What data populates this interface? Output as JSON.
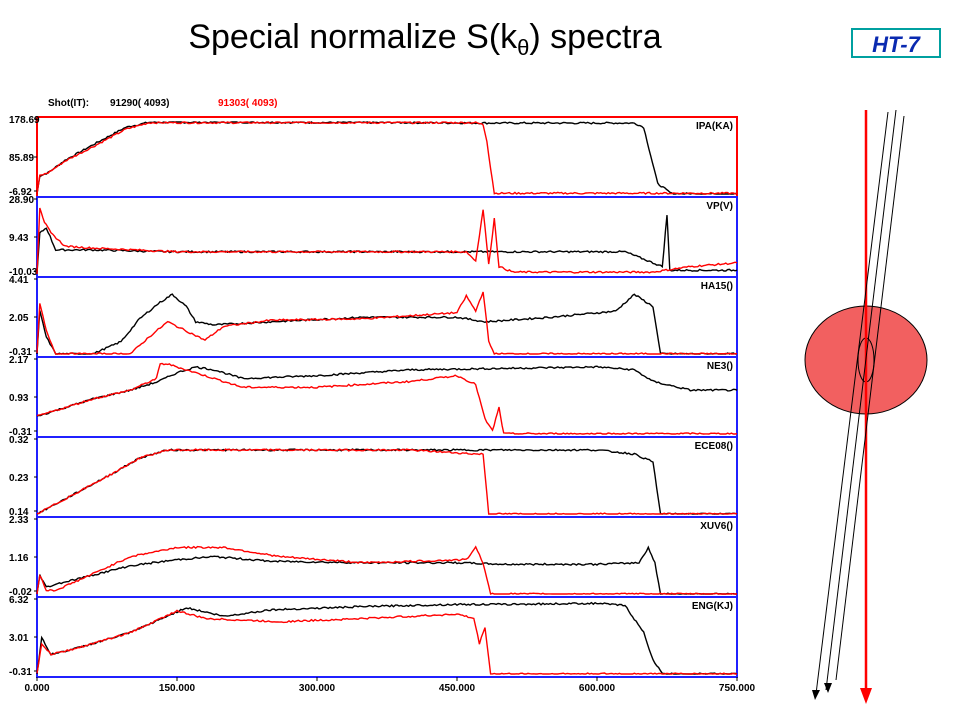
{
  "title": {
    "prefix": "Special normalize  S(k",
    "subscript": "θ",
    "suffix": ") spectra"
  },
  "badge": "HT-7",
  "header": {
    "shot_label": "Shot(IT):",
    "shot1": "91290( 4093)",
    "shot2": "91303( 4093)"
  },
  "colors": {
    "shot1": "#000000",
    "shot2": "#ff0000",
    "frame": "#2020ff",
    "first_frame": "#ff0000",
    "ellipse_fill": "#f26060"
  },
  "chart_data": {
    "type": "line",
    "xlim": [
      0,
      750
    ],
    "x_ticks": [
      "0.000",
      "150.000",
      "300.000",
      "450.000",
      "600.000",
      "750.000"
    ],
    "series": [
      {
        "name": "91290( 4093)",
        "color": "#000000"
      },
      {
        "name": "91303( 4093)",
        "color": "#ff0000"
      }
    ],
    "panels": [
      {
        "label": "IPA(KA)",
        "ticks": [
          "178.69",
          "85.89",
          "-6.92"
        ],
        "ylim": [
          -6.92,
          178.69
        ],
        "black": [
          [
            0,
            -6.9
          ],
          [
            3,
            40
          ],
          [
            12,
            48
          ],
          [
            30,
            80
          ],
          [
            60,
            120
          ],
          [
            95,
            165
          ],
          [
            120,
            178
          ],
          [
            200,
            178
          ],
          [
            400,
            177
          ],
          [
            480,
            176
          ],
          [
            640,
            176
          ],
          [
            650,
            165
          ],
          [
            665,
            20
          ],
          [
            680,
            -6
          ],
          [
            750,
            -6.9
          ]
        ],
        "red": [
          [
            0,
            -6.9
          ],
          [
            3,
            40
          ],
          [
            12,
            48
          ],
          [
            30,
            78
          ],
          [
            60,
            115
          ],
          [
            95,
            160
          ],
          [
            120,
            177
          ],
          [
            300,
            177
          ],
          [
            470,
            177
          ],
          [
            478,
            172
          ],
          [
            482,
            130
          ],
          [
            486,
            60
          ],
          [
            490,
            -5
          ],
          [
            750,
            -5
          ]
        ]
      },
      {
        "label": "VP(V)",
        "ticks": [
          "28.90",
          "9.43",
          "-10.03"
        ],
        "ylim": [
          -10.03,
          28.9
        ],
        "black": [
          [
            0,
            -10
          ],
          [
            3,
            12
          ],
          [
            10,
            15
          ],
          [
            20,
            3
          ],
          [
            60,
            3
          ],
          [
            140,
            2
          ],
          [
            300,
            2
          ],
          [
            450,
            2
          ],
          [
            630,
            2
          ],
          [
            650,
            -2
          ],
          [
            670,
            -6
          ],
          [
            675,
            22
          ],
          [
            678,
            -8
          ],
          [
            750,
            -8
          ]
        ],
        "red": [
          [
            0,
            -10
          ],
          [
            3,
            26
          ],
          [
            8,
            18
          ],
          [
            15,
            12
          ],
          [
            30,
            5
          ],
          [
            60,
            4
          ],
          [
            150,
            2
          ],
          [
            300,
            2
          ],
          [
            460,
            2
          ],
          [
            470,
            -3
          ],
          [
            478,
            25
          ],
          [
            484,
            -5
          ],
          [
            490,
            20
          ],
          [
            495,
            -6
          ],
          [
            510,
            -9
          ],
          [
            600,
            -9
          ],
          [
            660,
            -9
          ],
          [
            700,
            -6
          ],
          [
            750,
            -4
          ]
        ]
      },
      {
        "label": "HA15()",
        "ticks": [
          "4.41",
          "2.05",
          "-0.31"
        ],
        "ylim": [
          -0.31,
          4.41
        ],
        "black": [
          [
            0,
            -0.3
          ],
          [
            3,
            2.5
          ],
          [
            10,
            0.8
          ],
          [
            20,
            -0.3
          ],
          [
            60,
            -0.3
          ],
          [
            90,
            0.5
          ],
          [
            110,
            2.0
          ],
          [
            130,
            3.0
          ],
          [
            145,
            3.6
          ],
          [
            160,
            2.8
          ],
          [
            170,
            1.8
          ],
          [
            190,
            1.6
          ],
          [
            250,
            1.8
          ],
          [
            350,
            2.1
          ],
          [
            450,
            2.1
          ],
          [
            480,
            1.8
          ],
          [
            550,
            2.1
          ],
          [
            620,
            2.5
          ],
          [
            640,
            3.6
          ],
          [
            660,
            2.8
          ],
          [
            668,
            -0.3
          ],
          [
            750,
            -0.3
          ]
        ],
        "red": [
          [
            0,
            -0.3
          ],
          [
            3,
            3.0
          ],
          [
            10,
            1.2
          ],
          [
            20,
            -0.3
          ],
          [
            100,
            -0.3
          ],
          [
            120,
            0.8
          ],
          [
            140,
            1.8
          ],
          [
            160,
            1.2
          ],
          [
            180,
            0.6
          ],
          [
            200,
            1.5
          ],
          [
            250,
            1.9
          ],
          [
            350,
            2.0
          ],
          [
            450,
            2.4
          ],
          [
            460,
            3.5
          ],
          [
            470,
            2.5
          ],
          [
            478,
            3.8
          ],
          [
            484,
            0.5
          ],
          [
            490,
            -0.3
          ],
          [
            750,
            -0.3
          ]
        ]
      },
      {
        "label": "NE3()",
        "ticks": [
          "2.17",
          "0.93",
          "-0.31"
        ],
        "ylim": [
          -0.31,
          2.17
        ],
        "black": [
          [
            0,
            0.3
          ],
          [
            30,
            0.6
          ],
          [
            60,
            0.9
          ],
          [
            100,
            1.2
          ],
          [
            130,
            1.5
          ],
          [
            150,
            1.8
          ],
          [
            170,
            2.0
          ],
          [
            190,
            1.9
          ],
          [
            220,
            1.6
          ],
          [
            300,
            1.7
          ],
          [
            400,
            1.9
          ],
          [
            500,
            1.95
          ],
          [
            600,
            2.0
          ],
          [
            640,
            1.9
          ],
          [
            660,
            1.5
          ],
          [
            700,
            1.2
          ],
          [
            750,
            1.2
          ]
        ],
        "red": [
          [
            0,
            0.3
          ],
          [
            30,
            0.6
          ],
          [
            60,
            0.9
          ],
          [
            100,
            1.2
          ],
          [
            128,
            1.6
          ],
          [
            132,
            2.1
          ],
          [
            140,
            2.1
          ],
          [
            160,
            1.9
          ],
          [
            190,
            1.6
          ],
          [
            220,
            1.3
          ],
          [
            300,
            1.3
          ],
          [
            400,
            1.5
          ],
          [
            450,
            1.7
          ],
          [
            470,
            1.4
          ],
          [
            480,
            0.2
          ],
          [
            488,
            -0.2
          ],
          [
            495,
            0.6
          ],
          [
            500,
            -0.3
          ],
          [
            750,
            -0.3
          ]
        ]
      },
      {
        "label": "ECE08()",
        "ticks": [
          "0.32",
          "0.23",
          "0.14"
        ],
        "ylim": [
          0.14,
          0.32
        ],
        "black": [
          [
            0,
            0.14
          ],
          [
            40,
            0.19
          ],
          [
            80,
            0.24
          ],
          [
            110,
            0.28
          ],
          [
            140,
            0.3
          ],
          [
            200,
            0.3
          ],
          [
            400,
            0.3
          ],
          [
            480,
            0.3
          ],
          [
            600,
            0.3
          ],
          [
            640,
            0.29
          ],
          [
            660,
            0.27
          ],
          [
            668,
            0.14
          ],
          [
            750,
            0.14
          ]
        ],
        "red": [
          [
            0,
            0.14
          ],
          [
            40,
            0.19
          ],
          [
            80,
            0.24
          ],
          [
            110,
            0.28
          ],
          [
            140,
            0.3
          ],
          [
            200,
            0.3
          ],
          [
            400,
            0.3
          ],
          [
            470,
            0.29
          ],
          [
            478,
            0.29
          ],
          [
            484,
            0.14
          ],
          [
            490,
            0.14
          ],
          [
            750,
            0.14
          ]
        ]
      },
      {
        "label": "XUV6()",
        "ticks": [
          "2.33",
          "1.16",
          "-0.02"
        ],
        "ylim": [
          -0.02,
          2.33
        ],
        "black": [
          [
            0,
            -0.02
          ],
          [
            3,
            0.6
          ],
          [
            10,
            0.2
          ],
          [
            20,
            0.3
          ],
          [
            60,
            0.6
          ],
          [
            100,
            0.9
          ],
          [
            150,
            1.1
          ],
          [
            190,
            1.2
          ],
          [
            250,
            1.05
          ],
          [
            350,
            1.0
          ],
          [
            450,
            1.0
          ],
          [
            500,
            0.95
          ],
          [
            600,
            0.95
          ],
          [
            645,
            1.0
          ],
          [
            655,
            1.5
          ],
          [
            662,
            1.0
          ],
          [
            668,
            -0.02
          ],
          [
            750,
            -0.02
          ]
        ],
        "red": [
          [
            0,
            -0.02
          ],
          [
            3,
            0.6
          ],
          [
            10,
            0.1
          ],
          [
            20,
            0.1
          ],
          [
            50,
            0.5
          ],
          [
            100,
            1.2
          ],
          [
            150,
            1.5
          ],
          [
            200,
            1.5
          ],
          [
            260,
            1.2
          ],
          [
            350,
            1.0
          ],
          [
            460,
            1.1
          ],
          [
            470,
            1.5
          ],
          [
            478,
            1.0
          ],
          [
            486,
            -0.02
          ],
          [
            750,
            -0.02
          ]
        ]
      },
      {
        "label": "ENG(KJ)",
        "ticks": [
          "6.32",
          "3.01",
          "-0.31"
        ],
        "ylim": [
          -0.31,
          6.32
        ],
        "black": [
          [
            0,
            -0.3
          ],
          [
            5,
            3.0
          ],
          [
            15,
            1.5
          ],
          [
            40,
            2.0
          ],
          [
            100,
            3.5
          ],
          [
            160,
            5.8
          ],
          [
            200,
            5.0
          ],
          [
            250,
            5.6
          ],
          [
            350,
            5.9
          ],
          [
            450,
            6.1
          ],
          [
            500,
            6.1
          ],
          [
            600,
            6.2
          ],
          [
            630,
            6.0
          ],
          [
            650,
            3.5
          ],
          [
            660,
            1.0
          ],
          [
            670,
            -0.3
          ],
          [
            750,
            -0.3
          ]
        ],
        "red": [
          [
            0,
            -0.3
          ],
          [
            5,
            2.5
          ],
          [
            15,
            1.5
          ],
          [
            40,
            2.0
          ],
          [
            100,
            3.5
          ],
          [
            150,
            5.5
          ],
          [
            180,
            4.8
          ],
          [
            260,
            4.5
          ],
          [
            350,
            4.8
          ],
          [
            450,
            5.2
          ],
          [
            468,
            4.8
          ],
          [
            474,
            2.5
          ],
          [
            480,
            4.0
          ],
          [
            486,
            -0.3
          ],
          [
            750,
            -0.3
          ]
        ]
      }
    ]
  }
}
